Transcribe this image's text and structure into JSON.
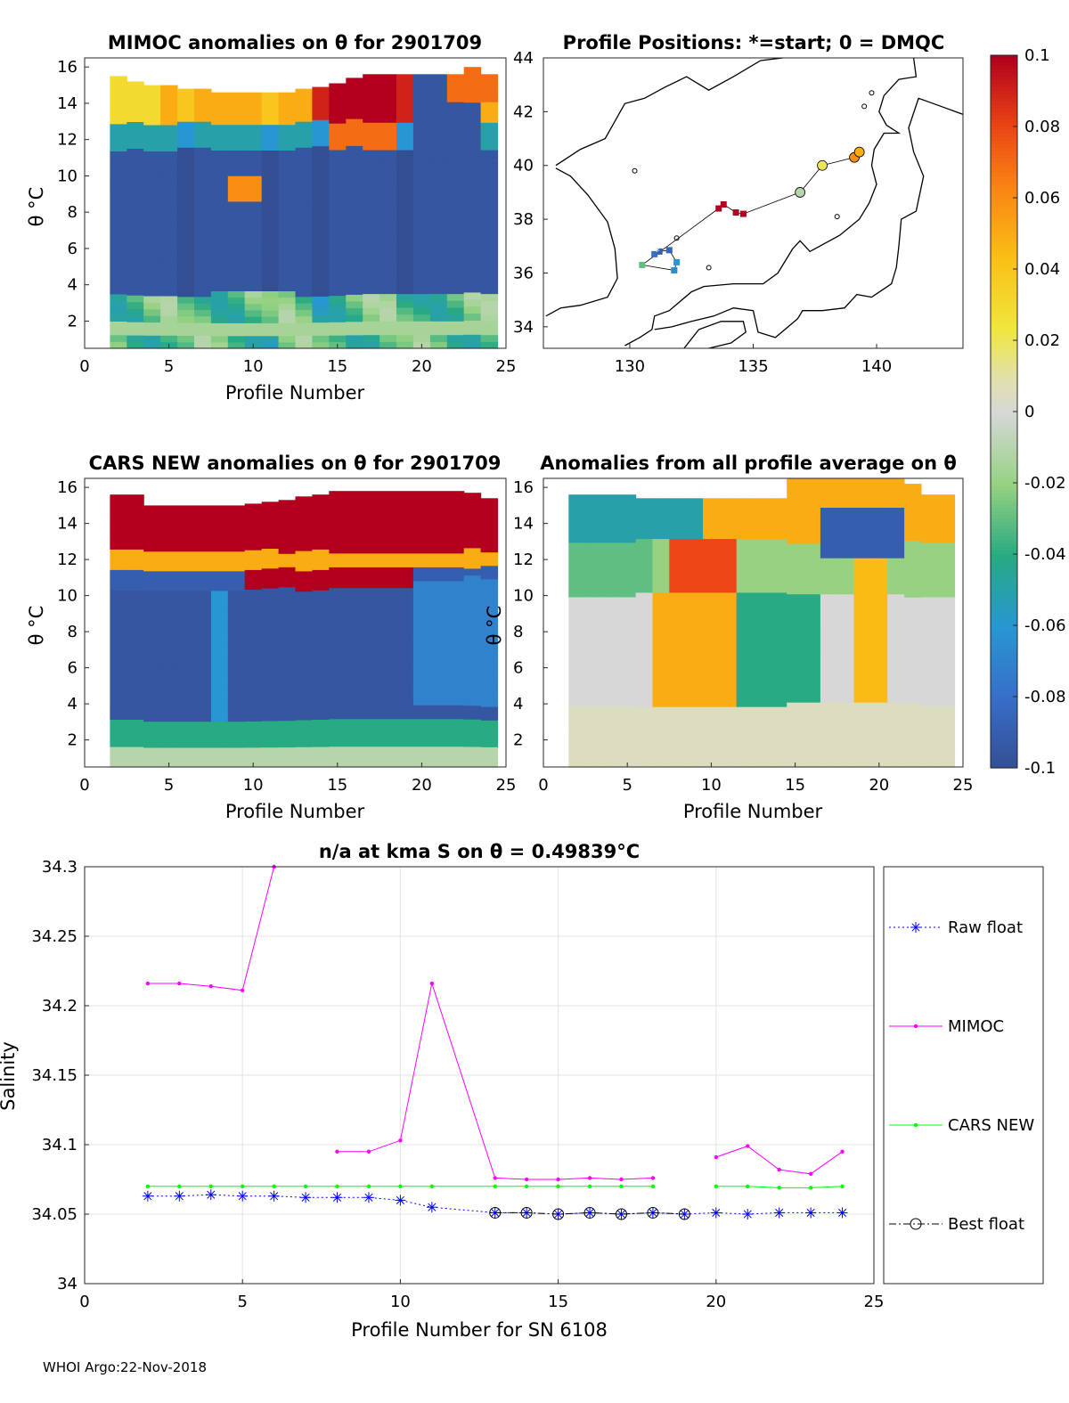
{
  "chart_data": [
    {
      "id": "mimoc_anom",
      "type": "heatmap",
      "title": "MIMOC anomalies on θ  for 2901709",
      "xlabel": "Profile Number",
      "ylabel": "θ °C",
      "xlim": [
        0,
        25
      ],
      "ylim": [
        0.5,
        16.5
      ],
      "xticks": [
        "0",
        "5",
        "10",
        "15",
        "20",
        "25"
      ],
      "yticks": [
        "2",
        "4",
        "6",
        "8",
        "10",
        "12",
        "14",
        "16"
      ]
    },
    {
      "id": "positions",
      "type": "scatter",
      "title": "Profile Positions: *=start; 0 = DMQC",
      "xlim": [
        126.5,
        143.5
      ],
      "ylim": [
        33.2,
        44
      ],
      "xticks": [
        "130",
        "135",
        "140"
      ],
      "yticks": [
        "34",
        "36",
        "38",
        "40",
        "42",
        "44"
      ],
      "track": [
        {
          "lon": 131.0,
          "lat": 36.7,
          "anomaly": -0.08
        },
        {
          "lon": 131.2,
          "lat": 36.8,
          "anomaly": -0.09
        },
        {
          "lon": 131.6,
          "lat": 36.85,
          "anomaly": -0.085
        },
        {
          "lon": 131.9,
          "lat": 36.4,
          "anomaly": -0.06
        },
        {
          "lon": 131.8,
          "lat": 36.1,
          "anomaly": -0.065
        },
        {
          "lon": 130.5,
          "lat": 36.3,
          "anomaly": -0.03
        },
        {
          "lon": 133.6,
          "lat": 38.4,
          "anomaly": 0.1
        },
        {
          "lon": 133.8,
          "lat": 38.55,
          "anomaly": 0.1
        },
        {
          "lon": 134.3,
          "lat": 38.25,
          "anomaly": 0.1
        },
        {
          "lon": 134.6,
          "lat": 38.2,
          "anomaly": 0.1
        },
        {
          "lon": 136.9,
          "lat": 39.0,
          "anomaly": -0.01
        },
        {
          "lon": 137.8,
          "lat": 40.0,
          "anomaly": 0.02
        },
        {
          "lon": 139.1,
          "lat": 40.3,
          "anomaly": 0.06
        },
        {
          "lon": 139.3,
          "lat": 40.5,
          "anomaly": 0.05
        }
      ],
      "dmqc_profiles": [
        10,
        11,
        12,
        13
      ]
    },
    {
      "id": "cars_anom",
      "type": "heatmap",
      "title": "CARS NEW anomalies on θ for 2901709",
      "xlabel": "Profile Number",
      "ylabel": "θ °C",
      "xlim": [
        0,
        25
      ],
      "ylim": [
        0.5,
        16.5
      ],
      "xticks": [
        "0",
        "5",
        "10",
        "15",
        "20",
        "25"
      ],
      "yticks": [
        "2",
        "4",
        "6",
        "8",
        "10",
        "12",
        "14",
        "16"
      ]
    },
    {
      "id": "avg_anom",
      "type": "heatmap",
      "title": "Anomalies from all profile average on θ",
      "xlabel": "Profile Number",
      "ylabel": "θ °C",
      "xlim": [
        0,
        25
      ],
      "ylim": [
        0.5,
        16.5
      ],
      "xticks": [
        "0",
        "5",
        "10",
        "15",
        "20",
        "25"
      ],
      "yticks": [
        "2",
        "4",
        "6",
        "8",
        "10",
        "12",
        "14",
        "16"
      ]
    },
    {
      "id": "colorbar",
      "type": "heatmap",
      "range": [
        -0.1,
        0.1
      ],
      "ticks": [
        "0.1",
        "0.08",
        "0.06",
        "0.04",
        "0.02",
        "0",
        "-0.02",
        "-0.04",
        "-0.06",
        "-0.08",
        "-0.1"
      ]
    },
    {
      "id": "salinity",
      "type": "line",
      "title": "n/a at kma S on θ = 0.49839°C",
      "xlabel": "Profile Number for SN 6108",
      "ylabel": "Salinity",
      "xlim": [
        0,
        25
      ],
      "ylim": [
        34,
        34.3
      ],
      "xticks": [
        "0",
        "5",
        "10",
        "15",
        "20",
        "25"
      ],
      "yticks": [
        "34",
        "34.05",
        "34.1",
        "34.15",
        "34.2",
        "34.25",
        "34.3"
      ],
      "series": [
        {
          "name": "Raw float",
          "color": "#0000ff",
          "marker": "asterisk",
          "style": "dotted",
          "x": [
            2,
            3,
            4,
            5,
            6,
            7,
            8,
            9,
            10,
            11,
            13,
            14,
            15,
            16,
            17,
            18,
            19,
            20,
            21,
            22,
            23,
            24
          ],
          "y": [
            34.063,
            34.063,
            34.064,
            34.063,
            34.063,
            34.062,
            34.062,
            34.062,
            34.06,
            34.055,
            34.051,
            34.051,
            34.05,
            34.051,
            34.05,
            34.051,
            34.05,
            34.051,
            34.05,
            34.051,
            34.051,
            34.051
          ]
        },
        {
          "name": "MIMOC",
          "color": "#ff00ff",
          "marker": "dot",
          "style": "solid",
          "x": [
            2,
            3,
            4,
            5,
            6,
            null,
            8,
            9,
            10,
            11,
            13,
            14,
            15,
            16,
            17,
            18,
            null,
            20,
            21,
            22,
            23,
            24
          ],
          "y": [
            34.216,
            34.216,
            34.214,
            34.211,
            34.3,
            null,
            34.095,
            34.095,
            34.103,
            34.216,
            34.076,
            34.075,
            34.075,
            34.076,
            34.075,
            34.076,
            null,
            34.091,
            34.099,
            34.082,
            34.079,
            34.095
          ]
        },
        {
          "name": "CARS NEW",
          "color": "#00ff00",
          "marker": "dot",
          "style": "solid",
          "x": [
            2,
            3,
            4,
            5,
            6,
            7,
            8,
            9,
            10,
            11,
            13,
            14,
            15,
            16,
            17,
            18,
            null,
            20,
            21,
            22,
            23,
            24
          ],
          "y": [
            34.07,
            34.07,
            34.07,
            34.07,
            34.07,
            34.07,
            34.07,
            34.07,
            34.07,
            34.07,
            34.07,
            34.07,
            34.07,
            34.07,
            34.07,
            34.07,
            null,
            34.07,
            34.07,
            34.069,
            34.069,
            34.07
          ]
        },
        {
          "name": "Best float",
          "color": "#000000",
          "marker": "circle",
          "style": "dashdot",
          "x": [
            13,
            14,
            15,
            16,
            17,
            18,
            19
          ],
          "y": [
            34.051,
            34.051,
            34.05,
            34.051,
            34.05,
            34.051,
            34.05
          ]
        }
      ]
    }
  ],
  "footer": "WHOI Argo:22-Nov-2018"
}
